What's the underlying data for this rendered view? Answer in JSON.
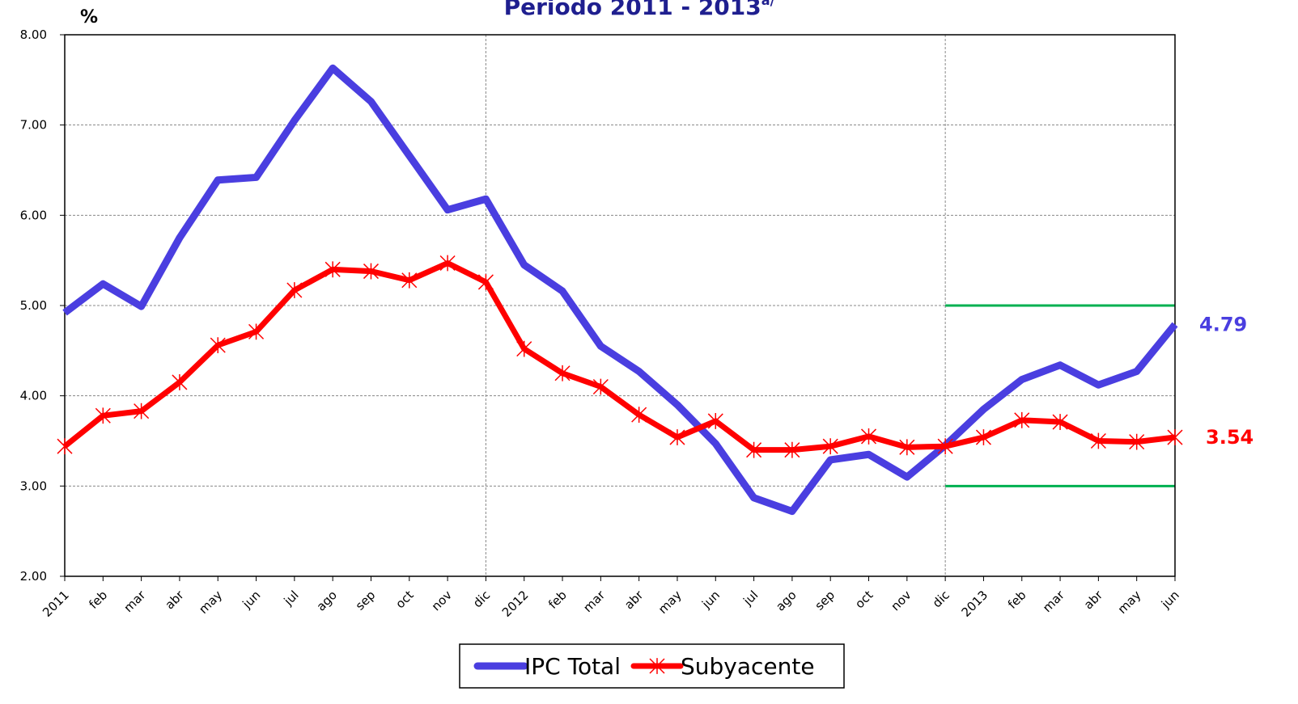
{
  "chart_data": {
    "type": "line",
    "title": "Periodo 2011 - 2013",
    "title_note": "a/",
    "y_label": "%",
    "categories": [
      "2011",
      "feb",
      "mar",
      "abr",
      "may",
      "jun",
      "jul",
      "ago",
      "sep",
      "oct",
      "nov",
      "dic",
      "2012",
      "feb",
      "mar",
      "abr",
      "may",
      "jun",
      "jul",
      "ago",
      "sep",
      "oct",
      "nov",
      "dic",
      "2013",
      "feb",
      "mar",
      "abr",
      "may",
      "jun"
    ],
    "series": [
      {
        "name": "IPC Total",
        "color": "#4a3ee0",
        "marker": "none",
        "values": [
          4.92,
          5.24,
          4.99,
          5.75,
          6.39,
          6.42,
          7.05,
          7.63,
          7.26,
          6.66,
          6.06,
          6.18,
          5.45,
          5.16,
          4.55,
          4.27,
          3.9,
          3.47,
          2.87,
          2.72,
          3.29,
          3.35,
          3.1,
          3.45,
          3.85,
          4.18,
          4.34,
          4.12,
          4.27,
          4.79
        ]
      },
      {
        "name": "Subyacente",
        "color": "#ff0000",
        "marker": "asterisk",
        "values": [
          3.44,
          3.78,
          3.83,
          4.15,
          4.56,
          4.71,
          5.17,
          5.4,
          5.38,
          5.28,
          5.47,
          5.26,
          4.52,
          4.25,
          4.1,
          3.79,
          3.54,
          3.72,
          3.4,
          3.4,
          3.44,
          3.55,
          3.43,
          3.44,
          3.54,
          3.73,
          3.71,
          3.5,
          3.49,
          3.54
        ]
      }
    ],
    "ylim": [
      2,
      8
    ],
    "yticks": [
      {
        "value": 2,
        "label": "2.00"
      },
      {
        "value": 3,
        "label": "3.00"
      },
      {
        "value": 4,
        "label": "4.00"
      },
      {
        "value": 5,
        "label": "5.00"
      },
      {
        "value": 6,
        "label": "6.00"
      },
      {
        "value": 7,
        "label": "7.00"
      },
      {
        "value": 8,
        "label": "8.00"
      }
    ],
    "grid": true,
    "year_dividers": [
      11,
      23
    ],
    "target_range": {
      "values": [
        3,
        5
      ],
      "start_index": 23,
      "color": "#00b050"
    },
    "legend": "bottom"
  }
}
